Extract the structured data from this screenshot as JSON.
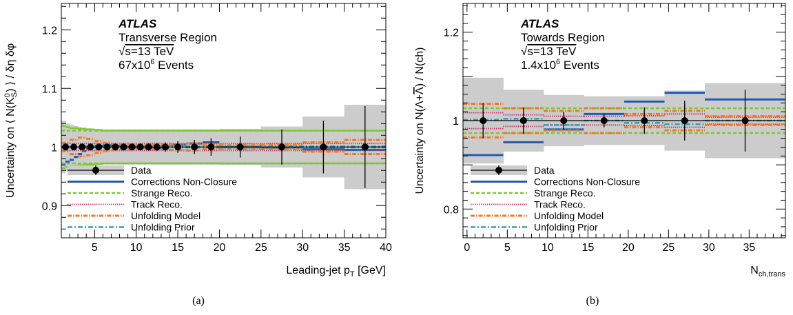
{
  "captions": [
    "(a)",
    "(b)"
  ],
  "chart_data": [
    {
      "type": "line",
      "panel": "(a)",
      "experiment": "ATLAS",
      "info_lines": [
        "Transverse Region",
        "√s=13 TeV",
        "67x10^6 Events"
      ],
      "info_parts": {
        "region": "Transverse Region",
        "sqrts": "s=13 TeV",
        "events_base": "67x10",
        "events_exp": "6",
        "events_unit": " Events"
      },
      "ylabel": "Uncertainty on ⟨ N(K0S) ⟩ / δη δφ",
      "ylabel_parts": {
        "prefix": "Uncertainty on ⟨ N(K",
        "sup": "0",
        "sub": "S",
        "suffix": ") ⟩ / δη δφ"
      },
      "xlabel": "Leading-jet pT [GeV]",
      "xlabel_parts": {
        "main": "Leading-jet p",
        "sub": "T",
        "unit": " [GeV]"
      },
      "xlim": [
        1,
        40
      ],
      "ylim": [
        0.845,
        1.245
      ],
      "xticks": [
        5,
        10,
        15,
        20,
        25,
        30,
        35,
        40
      ],
      "xtick_labels": [
        "5",
        "10",
        "15",
        "20",
        "25",
        "30",
        "35",
        "40"
      ],
      "yticks": [
        0.9,
        1.0,
        1.1,
        1.2
      ],
      "ytick_labels": [
        "0.9",
        "1",
        "1.1",
        "1.2"
      ],
      "band": {
        "edges": [
          1,
          1.5,
          2,
          2.5,
          3,
          3.5,
          4,
          4.5,
          5,
          5.5,
          6,
          6.5,
          7,
          7.5,
          8,
          8.5,
          9,
          9.5,
          10,
          11,
          12,
          13,
          14,
          16,
          18,
          20,
          25,
          30,
          35,
          40
        ],
        "half_width": [
          0.045,
          0.04,
          0.038,
          0.036,
          0.034,
          0.033,
          0.032,
          0.031,
          0.031,
          0.03,
          0.03,
          0.03,
          0.03,
          0.03,
          0.03,
          0.03,
          0.03,
          0.03,
          0.03,
          0.03,
          0.03,
          0.03,
          0.03,
          0.03,
          0.03,
          0.031,
          0.035,
          0.052,
          0.072
        ]
      },
      "data_points": {
        "x": [
          1.5,
          2.5,
          3.5,
          4.5,
          5.5,
          6.5,
          7.5,
          8.5,
          9.5,
          10.5,
          11.5,
          12.5,
          13.5,
          15,
          17,
          19,
          22.5,
          27.5,
          32.5,
          37.5
        ],
        "y": [
          1,
          1,
          1,
          1,
          1,
          1,
          1,
          1,
          1,
          1,
          1,
          1,
          1,
          1,
          1,
          1,
          1,
          1,
          1,
          1
        ],
        "err": [
          0.004,
          0.004,
          0.004,
          0.004,
          0.004,
          0.004,
          0.004,
          0.004,
          0.005,
          0.005,
          0.006,
          0.007,
          0.008,
          0.01,
          0.012,
          0.015,
          0.018,
          0.03,
          0.045,
          0.07
        ]
      },
      "series": [
        {
          "name": "Corrections Non-Closure",
          "edges": [
            1,
            1.5,
            2,
            2.5,
            3,
            3.5,
            4,
            4.5,
            5,
            6,
            7,
            8,
            9,
            10,
            12,
            14,
            16,
            18,
            20,
            25,
            30,
            35,
            40
          ],
          "values": [
            0.97,
            0.975,
            0.978,
            0.983,
            0.988,
            0.993,
            0.997,
            1.0,
            1.002,
            1.003,
            1.002,
            1.001,
            1.0,
            0.999,
            0.998,
            1.004,
            1.006,
            1.008,
            1.0,
            0.999,
            0.996,
            0.995,
            0.993
          ]
        },
        {
          "name": "Strange Reco.",
          "edges": [
            1,
            40
          ],
          "values": [
            1.028
          ],
          "mirror": 0.972
        },
        {
          "name": "Track Reco.",
          "edges": [
            1,
            40
          ],
          "values": [
            1.006
          ],
          "mirror": 0.994
        },
        {
          "name": "Unfolding Model",
          "edges": [
            1,
            2,
            3,
            4,
            5,
            6,
            7,
            8,
            10,
            12,
            14,
            16,
            18,
            20,
            25,
            30,
            35,
            40
          ],
          "values": [
            1.007,
            1.012,
            1.016,
            1.014,
            1.01,
            1.007,
            1.005,
            1.004,
            1.003,
            1.004,
            1.005,
            1.006,
            1.004,
            1.003,
            1.004,
            1.008,
            1.012
          ],
          "mirror_about": 1.0
        },
        {
          "name": "Unfolding Prior",
          "edges": [
            1,
            40
          ],
          "values": [
            1.001
          ],
          "mirror": 0.999
        }
      ],
      "green_edge": {
        "edges": [
          1,
          1.5,
          2,
          3,
          4,
          5,
          6,
          8,
          40
        ],
        "values": [
          1.036,
          1.034,
          1.032,
          1.031,
          1.03,
          1.029,
          1.028,
          1.028
        ]
      },
      "legend": [
        "Data",
        "Corrections Non-Closure",
        "Strange Reco.",
        "Track Reco.",
        "Unfolding Model",
        "Unfolding Prior"
      ]
    },
    {
      "type": "line",
      "panel": "(b)",
      "experiment": "ATLAS",
      "info_lines": [
        "Towards Region",
        "√s=13 TeV",
        "1.4x10^6 Events"
      ],
      "info_parts": {
        "region": "Towards Region",
        "sqrts": "s=13 TeV",
        "events_base": "1.4x10",
        "events_exp": "6",
        "events_unit": " Events"
      },
      "ylabel": "Uncertainty on N(Λ+Λ̄) / N(ch)",
      "ylabel_parts": {
        "prefix": "Uncertainty on N(Λ+",
        "bar": "Λ",
        "suffix": ") / N(ch)"
      },
      "xlabel": "Nch,trans",
      "xlabel_parts": {
        "main": "N",
        "sub": "ch,trans",
        "unit": ""
      },
      "xlim": [
        -0.5,
        39.5
      ],
      "ylim": [
        0.735,
        1.265
      ],
      "xticks": [
        0,
        5,
        10,
        15,
        20,
        25,
        30,
        35
      ],
      "xtick_labels": [
        "0",
        "5",
        "10",
        "15",
        "20",
        "25",
        "30",
        "35"
      ],
      "yticks": [
        0.8,
        1.0,
        1.2
      ],
      "ytick_labels": [
        "0.8",
        "1",
        "1.2"
      ],
      "band": {
        "edges": [
          -0.5,
          4.5,
          9.5,
          14.5,
          19.5,
          24.5,
          29.5,
          39.5
        ],
        "half_width": [
          0.097,
          0.07,
          0.058,
          0.055,
          0.055,
          0.068,
          0.085
        ]
      },
      "data_points": {
        "x": [
          2,
          7,
          12,
          17,
          22,
          27,
          34.5
        ],
        "y": [
          1,
          1,
          1,
          1,
          1,
          1,
          1
        ],
        "err": [
          0.04,
          0.03,
          0.02,
          0.015,
          0.03,
          0.045,
          0.07
        ]
      },
      "series": [
        {
          "name": "Corrections Non-Closure",
          "edges": [
            -0.5,
            4.5,
            9.5,
            14.5,
            19.5,
            24.5,
            29.5,
            39.5
          ],
          "values": [
            0.922,
            0.951,
            0.98,
            1.015,
            1.043,
            1.063,
            1.048
          ]
        },
        {
          "name": "Strange Reco.",
          "edges": [
            -0.5,
            39.5
          ],
          "values": [
            1.028
          ],
          "mirror": 0.972
        },
        {
          "name": "Track Reco.",
          "edges": [
            -0.5,
            4.5,
            9.5,
            14.5,
            19.5,
            24.5,
            29.5,
            39.5
          ],
          "values": [
            1.018,
            1.013,
            1.01,
            1.01,
            1.011,
            1.015,
            1.008
          ],
          "mirror_about": 1.0
        },
        {
          "name": "Unfolding Model",
          "edges": [
            -0.5,
            4.5,
            9.5,
            14.5,
            19.5,
            24.5,
            29.5,
            39.5
          ],
          "values": [
            1.038,
            1.028,
            1.022,
            1.028,
            1.015,
            1.022,
            1.01
          ],
          "mirror_about": 1.0
        },
        {
          "name": "Unfolding Prior",
          "edges": [
            -0.5,
            4.5,
            9.5,
            14.5,
            19.5,
            24.5,
            29.5,
            39.5
          ],
          "values": [
            1.002,
            1.004,
            0.99,
            1.0,
            0.995,
            0.992,
            1.0
          ]
        }
      ],
      "legend": [
        "Data",
        "Corrections Non-Closure",
        "Strange Reco.",
        "Track Reco.",
        "Unfolding Model",
        "Unfolding Prior"
      ]
    }
  ],
  "colors": {
    "band": "#cccccc",
    "data": "#000000",
    "Corrections Non-Closure": "#1f5ab4",
    "Strange Reco.": "#7dc832",
    "Track Reco.": "#c83c6e",
    "Unfolding Model": "#f07828",
    "Unfolding Prior": "#2ba0b4"
  }
}
